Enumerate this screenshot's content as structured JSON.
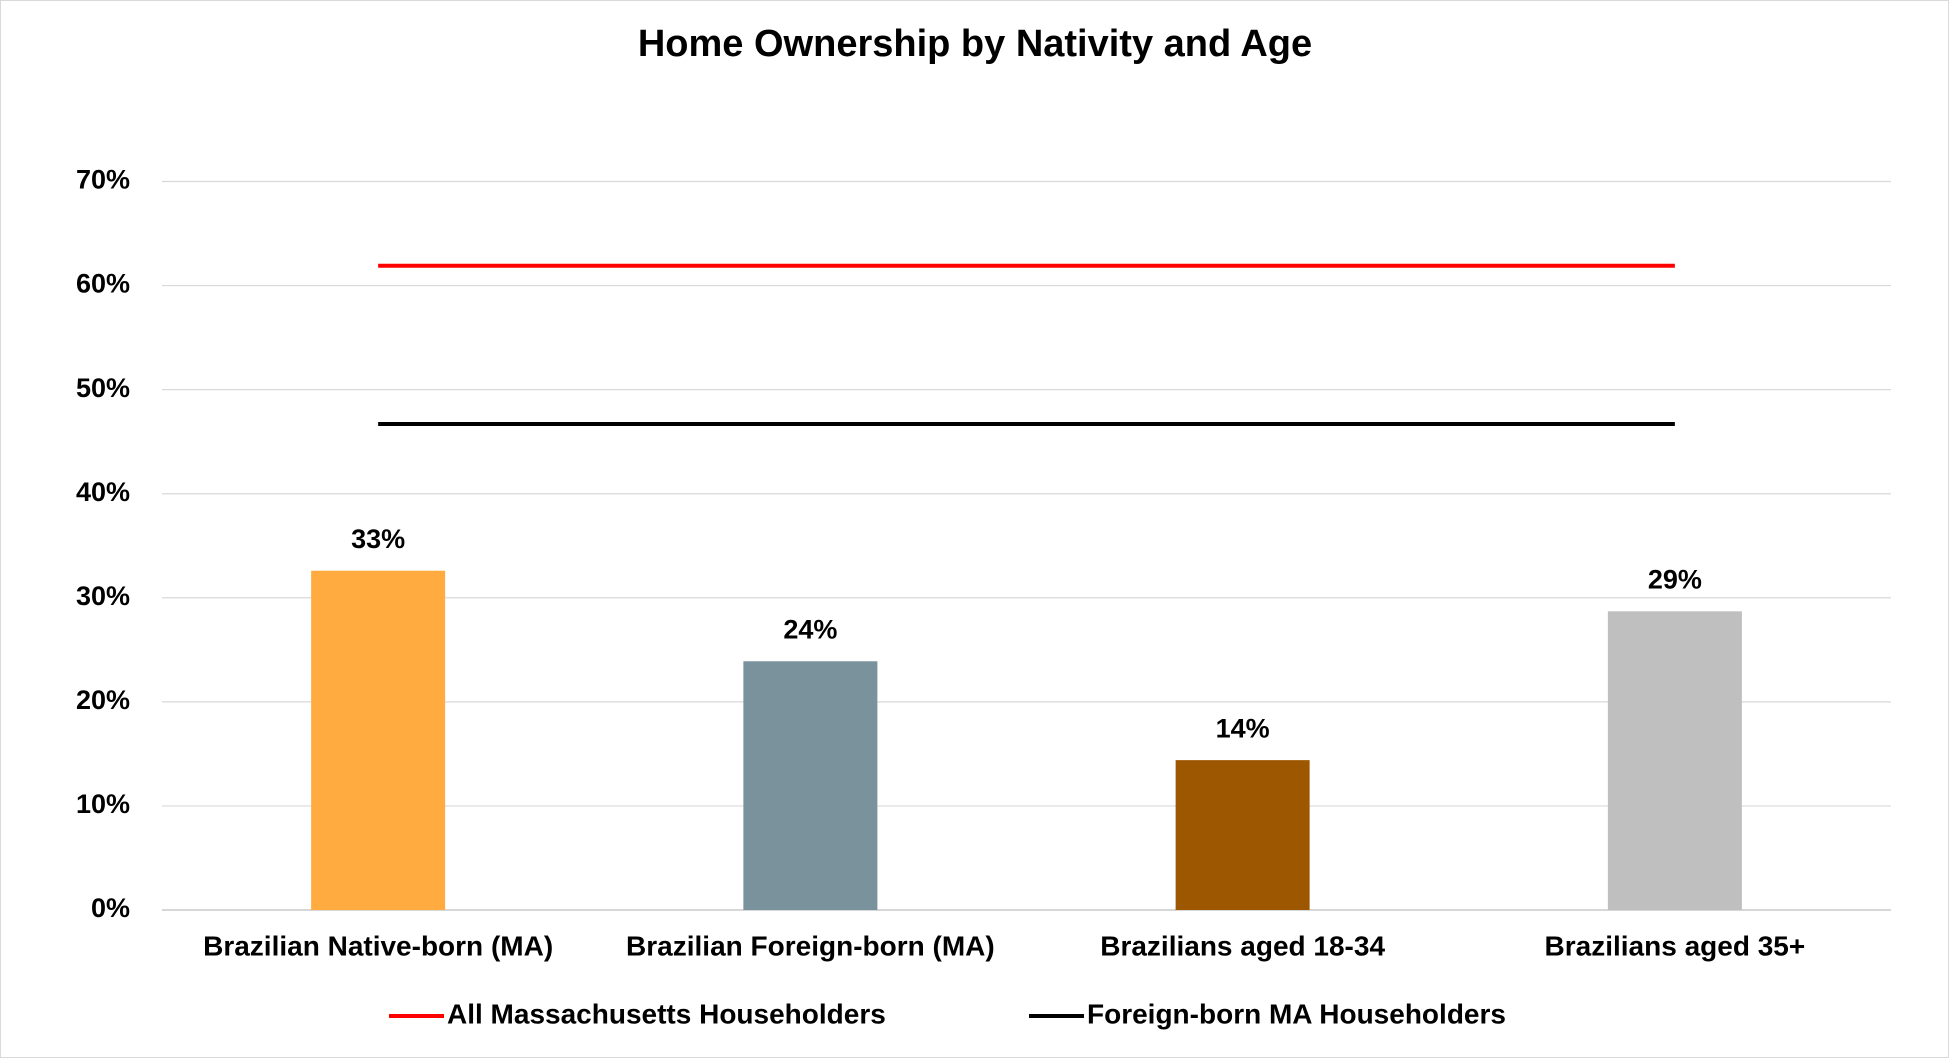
{
  "chart_data": {
    "type": "bar",
    "title": "Home Ownership by Nativity and Age",
    "categories": [
      "Brazilian Native-born (MA)",
      "Brazilian Foreign-born (MA)",
      "Brazilians aged 18-34",
      "Brazilians aged 35+"
    ],
    "values": [
      32.6,
      23.9,
      14.4,
      28.7
    ],
    "value_labels": [
      "33%",
      "24%",
      "14%",
      "29%"
    ],
    "colors": [
      "#ffab40",
      "#7a929c",
      "#9c5700",
      "#bfbfbf"
    ],
    "lines": [
      {
        "name": "All Massachusetts Householders",
        "color": "#ff0000",
        "values": [
          61.9,
          61.9,
          61.9,
          61.9
        ]
      },
      {
        "name": "Foreign-born MA Householders",
        "color": "#000000",
        "values": [
          46.7,
          46.7,
          46.7,
          46.7
        ]
      }
    ],
    "ylim": [
      0,
      70
    ],
    "yticks": [
      {
        "value": 0,
        "label": "0%"
      },
      {
        "value": 10,
        "label": "10%"
      },
      {
        "value": 20,
        "label": "20%"
      },
      {
        "value": 30,
        "label": "30%"
      },
      {
        "value": 40,
        "label": "40%"
      },
      {
        "value": 50,
        "label": "50%"
      },
      {
        "value": 60,
        "label": "60%"
      },
      {
        "value": 70,
        "label": "70%"
      }
    ],
    "grid": true,
    "legend": "bottom"
  }
}
